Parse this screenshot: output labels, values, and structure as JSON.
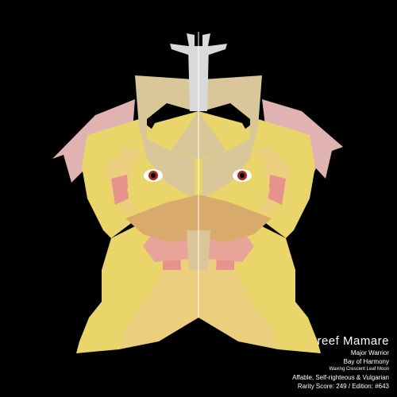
{
  "colors": {
    "background": "#000000",
    "body_yellow": "#e9d56a",
    "body_pale": "#eccf7e",
    "crest_tan": "#d9c79a",
    "beak_tan": "#d8aa6c",
    "wing_pink": "#e1b2b2",
    "cheek_pink": "#e8928c",
    "antenna_grey": "#d7d9db",
    "eye_red": "#a52a1e",
    "caption_text": "#ffffff"
  },
  "icons": [
    "creature-illustration"
  ],
  "caption": {
    "name": "reef Mamare",
    "rank": "Major Warrior",
    "home": "Bay of Harmony",
    "moon": "Waxing Crescent Leaf Moon",
    "traits": "Affable, Self-righteous & Vulgarian",
    "rarity": "Rarity Score: 249 / Edition: #643"
  }
}
